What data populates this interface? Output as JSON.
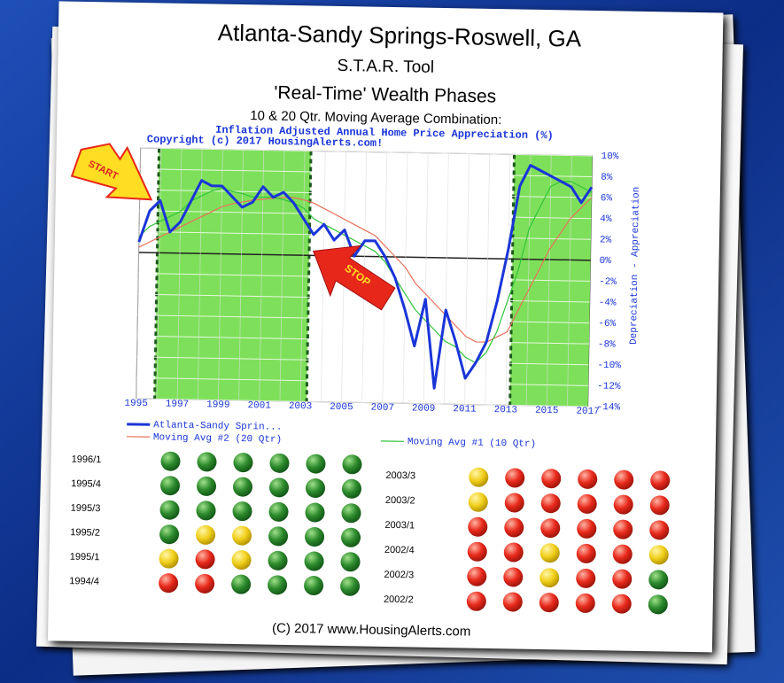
{
  "chart_data": {
    "type": "line",
    "title": "Atlanta-Sandy Springs-Roswell, GA",
    "subtitles": [
      "S.T.A.R. Tool",
      "'Real-Time' Wealth Phases",
      "10 & 20 Qtr. Moving Average Combination:"
    ],
    "chart_title": "Inflation Adjusted Annual Home Price Appreciation (%)",
    "copyright": "Copyright (c) 2017 HousingAlerts.com!",
    "ylabel": "Depreciation - Appreciation",
    "y_axis_position": "right",
    "annotations": [
      "START",
      "STOP"
    ],
    "shaded_ranges": [
      [
        1995.9,
        2003.3
      ],
      [
        2013.2,
        2017
      ]
    ],
    "shade_color": "#7ee05a",
    "grid": true,
    "x": [
      1995,
      1995.5,
      1996,
      1996.5,
      1997,
      1997.5,
      1998,
      1998.5,
      1999,
      1999.5,
      2000,
      2000.5,
      2001,
      2001.5,
      2002,
      2002.5,
      2003,
      2003.5,
      2004,
      2004.5,
      2005,
      2005.5,
      2006,
      2006.5,
      2007,
      2007.5,
      2008,
      2008.5,
      2009,
      2009.5,
      2010,
      2010.5,
      2011,
      2011.5,
      2012,
      2012.5,
      2013,
      2013.5,
      2014,
      2014.5,
      2015,
      2015.5,
      2016,
      2016.5,
      2017
    ],
    "xlim": [
      1995,
      2017
    ],
    "xticks": [
      1995,
      1997,
      1999,
      2001,
      2003,
      2005,
      2007,
      2009,
      2011,
      2013,
      2015,
      2017
    ],
    "ylim": [
      -14,
      10
    ],
    "yticks": [
      {
        "value": 10,
        "label": "10%"
      },
      {
        "value": 8,
        "label": "8%"
      },
      {
        "value": 6,
        "label": "6%"
      },
      {
        "value": 4,
        "label": "4%"
      },
      {
        "value": 2,
        "label": "2%"
      },
      {
        "value": 0,
        "label": "0%"
      },
      {
        "value": -2,
        "label": "-2%"
      },
      {
        "value": -4,
        "label": "-4%"
      },
      {
        "value": -6,
        "label": "-6%"
      },
      {
        "value": -8,
        "label": "-8%"
      },
      {
        "value": -10,
        "label": "-10%"
      },
      {
        "value": -12,
        "label": "-12%"
      },
      {
        "value": -14,
        "label": "-14%"
      }
    ],
    "series": [
      {
        "name": "Atlanta-Sandy Sprin...",
        "color": "#1a35d8",
        "width": 3,
        "values": [
          1,
          4,
          5,
          2,
          3,
          5,
          7,
          6.5,
          6.5,
          5.5,
          4.5,
          5,
          6.5,
          5.5,
          6,
          5,
          3.5,
          2,
          3,
          1.5,
          2.5,
          0,
          1.5,
          1.5,
          0,
          -2,
          -5,
          -8.5,
          -4,
          -12.5,
          -5,
          -8,
          -11.5,
          -10,
          -8,
          -4,
          1,
          7,
          9,
          8.5,
          8,
          7.5,
          7,
          5.5,
          7
        ]
      },
      {
        "name": "Moving Avg #2 (20 Qtr)",
        "color": "#e8705a",
        "width": 1.2,
        "values": [
          0.5,
          1,
          1.5,
          2,
          2.5,
          3,
          3.5,
          4,
          4.5,
          4.8,
          5,
          5.2,
          5.3,
          5.4,
          5.5,
          5.5,
          5.3,
          5,
          4.5,
          4,
          3.5,
          3,
          2.5,
          2,
          1,
          0,
          -1,
          -2.5,
          -3.5,
          -4.5,
          -5.5,
          -6.5,
          -7.5,
          -8,
          -8,
          -7.5,
          -7,
          -5,
          -3,
          -1,
          1,
          2.5,
          4,
          5,
          6
        ]
      },
      {
        "name": "Moving Avg #1 (10 Qtr)",
        "color": "#2fc43a",
        "width": 1.2,
        "values": [
          1.5,
          2.5,
          3,
          3.5,
          4,
          5,
          5.5,
          6,
          6.3,
          6,
          5.8,
          5.5,
          5.5,
          5.5,
          5.3,
          5,
          4.5,
          3.5,
          3,
          2.5,
          2,
          1.5,
          1,
          0.5,
          -0.5,
          -2,
          -3.5,
          -5,
          -6,
          -7,
          -8,
          -8.5,
          -9.5,
          -10,
          -9,
          -7,
          -4,
          -1,
          3,
          5,
          7,
          7.5,
          7.5,
          7,
          6.5
        ]
      }
    ]
  },
  "signals": {
    "left": {
      "rows": [
        "1996/1",
        "1995/4",
        "1995/3",
        "1995/2",
        "1995/1",
        "1994/4"
      ],
      "dots": [
        [
          "g",
          "g",
          "g",
          "g",
          "g",
          "g"
        ],
        [
          "g",
          "g",
          "g",
          "g",
          "g",
          "g"
        ],
        [
          "g",
          "g",
          "g",
          "g",
          "g",
          "g"
        ],
        [
          "g",
          "y",
          "y",
          "g",
          "g",
          "g"
        ],
        [
          "y",
          "r",
          "y",
          "g",
          "g",
          "g"
        ],
        [
          "r",
          "r",
          "g",
          "g",
          "g",
          "g"
        ]
      ]
    },
    "right": {
      "rows": [
        "2003/3",
        "2003/2",
        "2003/1",
        "2002/4",
        "2002/3",
        "2002/2"
      ],
      "dots": [
        [
          "y",
          "r",
          "r",
          "r",
          "r",
          "r"
        ],
        [
          "y",
          "r",
          "r",
          "r",
          "r",
          "r"
        ],
        [
          "r",
          "r",
          "r",
          "r",
          "r",
          "r"
        ],
        [
          "r",
          "r",
          "y",
          "r",
          "r",
          "y"
        ],
        [
          "r",
          "r",
          "y",
          "r",
          "r",
          "g"
        ],
        [
          "r",
          "r",
          "r",
          "r",
          "r",
          "g"
        ]
      ]
    }
  },
  "footer": "(C) 2017 www.HousingAlerts.com"
}
